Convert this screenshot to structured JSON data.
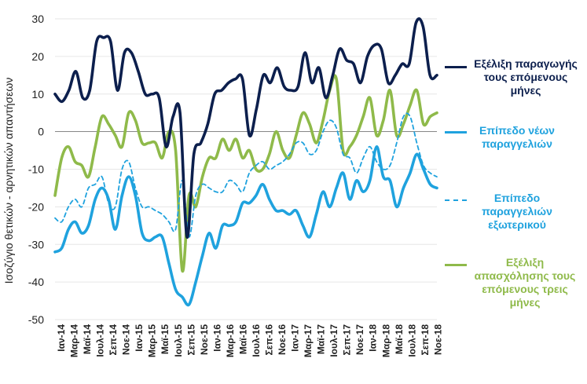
{
  "chart_data": {
    "type": "line",
    "ylabel": "Ισοζύγιο θετικών - αρνητικών απαντήσεων",
    "ylim": [
      -50,
      30
    ],
    "yticks": [
      30,
      20,
      10,
      0,
      -10,
      -20,
      -30,
      -40,
      -50
    ],
    "x_tick_labels": [
      "Ιαν-14",
      "Μαρ-14",
      "Μαϊ-14",
      "Ιουλ-14",
      "Σεπ-14",
      "Νοε-14",
      "Ιαν-15",
      "Μαρ-15",
      "Μαϊ-15",
      "Ιουλ-15",
      "Σεπ-15",
      "Νοε-15",
      "Ιαν-16",
      "Μαρ-16",
      "Μαϊ-16",
      "Ιουλ-16",
      "Σεπ-16",
      "Νοε-16",
      "Ιαν-17",
      "Μαρ-17",
      "Μαϊ-17",
      "Ιουλ-17",
      "Σεπ-17",
      "Νοε-17",
      "Ιαν-18",
      "Μαρ-18",
      "Μαϊ-18",
      "Ιουλ-18",
      "Σεπ-18",
      "Νοε-18"
    ],
    "series": [
      {
        "name": "Εξέλιξη παραγωγής τους επόμενους μήνες",
        "color": "#0c1f4d",
        "style": "solid",
        "values": [
          10,
          8,
          11,
          16,
          9,
          11,
          24,
          25,
          24,
          11,
          21,
          21,
          16,
          10,
          10,
          9,
          -4,
          4,
          5,
          -28,
          -6,
          -3,
          2,
          10,
          11,
          13,
          14,
          14,
          -1,
          6,
          15,
          13,
          17,
          12,
          11,
          12,
          21,
          13,
          17,
          9,
          15,
          22,
          19,
          18,
          13,
          20,
          23,
          22,
          13,
          15,
          18,
          18,
          29,
          28,
          15,
          15
        ]
      },
      {
        "name": "Επίπεδο νέων παραγγελιών",
        "color": "#1fa2de",
        "style": "solid",
        "values": [
          -32,
          -31,
          -26,
          -24,
          -27,
          -25,
          -18,
          -15,
          -18,
          -26,
          -17,
          -12,
          -17,
          -27,
          -29,
          -28,
          -28,
          -35,
          -42,
          -44,
          -46,
          -40,
          -33,
          -27,
          -31,
          -25,
          -25,
          -24,
          -19,
          -19,
          -17,
          -14,
          -18,
          -21,
          -21,
          -22,
          -21,
          -25,
          -28,
          -22,
          -16,
          -20,
          -15,
          -11,
          -18,
          -13,
          -16,
          -13,
          -4,
          -12,
          -13,
          -20,
          -15,
          -11,
          -6,
          -10,
          -14,
          -15
        ]
      },
      {
        "name": "Επίπεδο παραγγελιών εξωτερικού",
        "color": "#1fa2de",
        "style": "dashed",
        "values": [
          -23,
          -24,
          -20,
          -18,
          -20,
          -15,
          -14,
          -12,
          -19,
          -20,
          -10,
          -8,
          -15,
          -20,
          -20,
          -21,
          -22,
          -24,
          -26,
          -13,
          -28,
          -17,
          -14,
          -15,
          -16,
          -16,
          -13,
          -14,
          -16,
          -11,
          -9,
          -8,
          -10,
          -9,
          -8,
          -6,
          -3,
          -3,
          -6,
          -5,
          0,
          3,
          1,
          -6,
          -7,
          -11,
          -7,
          -4,
          -8,
          -10,
          -9,
          -3,
          4,
          4,
          -3,
          -9,
          -11,
          -12
        ]
      },
      {
        "name": "Εξέλιξη απασχόλησης τους επόμενους τρεις μήνες",
        "color": "#8fba4a",
        "style": "solid",
        "values": [
          -17,
          -7,
          -4,
          -8,
          -9,
          -12,
          -4,
          4,
          2,
          -1,
          -4,
          5,
          3,
          -3,
          -3,
          -3,
          -7,
          0,
          -5,
          -37,
          -17,
          -20,
          -12,
          -7,
          -7,
          -2,
          -5,
          -2,
          -7,
          -5,
          -10,
          -10,
          -6,
          0,
          -5,
          -7,
          -1,
          5,
          2,
          -3,
          3,
          11,
          14,
          -5,
          -4,
          -1,
          4,
          9,
          -1,
          3,
          11,
          -1,
          2,
          7,
          11,
          2,
          4,
          5
        ]
      }
    ]
  }
}
